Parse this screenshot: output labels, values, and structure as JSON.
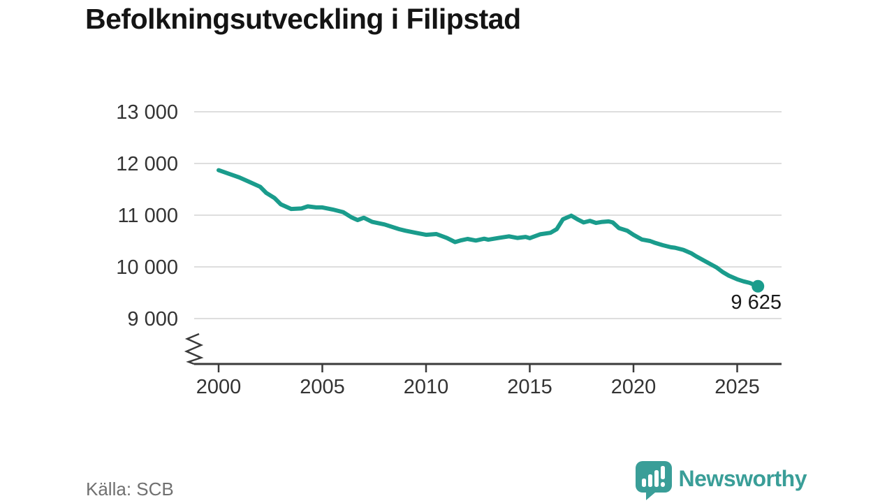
{
  "header": {
    "title": "Befolkningsutveckling i Filipstad"
  },
  "footer": {
    "source": "Källa: SCB",
    "logo_text": "Newsworthy"
  },
  "colors": {
    "line": "#1a9c8c",
    "grid": "#dedede",
    "axis": "#3a3a3a",
    "tick_text": "#333333",
    "title_text": "#141414",
    "source_text": "#707070",
    "logo_teal": "#3a9e98",
    "end_label_text": "#1a1a1a",
    "background": "#ffffff"
  },
  "chart_data": {
    "type": "line",
    "title": "Befolkningsutveckling i Filipstad",
    "xlabel": "",
    "ylabel": "",
    "x_ticks": [
      2000,
      2005,
      2010,
      2015,
      2020,
      2025
    ],
    "x_tick_labels": [
      "2000",
      "2005",
      "2010",
      "2015",
      "2020",
      "2025"
    ],
    "y_ticks": [
      13000,
      12000,
      11000,
      10000,
      9000
    ],
    "y_tick_labels": [
      "13 000",
      "12 000",
      "11 000",
      "10 000",
      "9 000"
    ],
    "xlim": [
      1998.8,
      2027.2
    ],
    "ylim_displayed": [
      9000,
      13000
    ],
    "axis_break": true,
    "grid": "horizontal",
    "legend": "none",
    "end_label": "9 625",
    "end_point": [
      2026,
      9625
    ],
    "points": [
      [
        2000.0,
        11870
      ],
      [
        2000.5,
        11800
      ],
      [
        2001.0,
        11730
      ],
      [
        2001.5,
        11640
      ],
      [
        2002.0,
        11550
      ],
      [
        2002.3,
        11430
      ],
      [
        2002.7,
        11330
      ],
      [
        2003.0,
        11210
      ],
      [
        2003.5,
        11120
      ],
      [
        2004.0,
        11130
      ],
      [
        2004.3,
        11170
      ],
      [
        2004.7,
        11150
      ],
      [
        2005.0,
        11150
      ],
      [
        2005.5,
        11110
      ],
      [
        2006.0,
        11060
      ],
      [
        2006.4,
        10960
      ],
      [
        2006.7,
        10905
      ],
      [
        2007.0,
        10950
      ],
      [
        2007.4,
        10870
      ],
      [
        2008.0,
        10820
      ],
      [
        2008.7,
        10730
      ],
      [
        2009.0,
        10700
      ],
      [
        2009.5,
        10660
      ],
      [
        2010.0,
        10620
      ],
      [
        2010.5,
        10635
      ],
      [
        2011.0,
        10560
      ],
      [
        2011.4,
        10480
      ],
      [
        2011.7,
        10515
      ],
      [
        2012.0,
        10540
      ],
      [
        2012.4,
        10510
      ],
      [
        2012.8,
        10545
      ],
      [
        2013.0,
        10525
      ],
      [
        2013.5,
        10560
      ],
      [
        2014.0,
        10590
      ],
      [
        2014.4,
        10560
      ],
      [
        2014.8,
        10580
      ],
      [
        2015.0,
        10555
      ],
      [
        2015.5,
        10630
      ],
      [
        2016.0,
        10660
      ],
      [
        2016.3,
        10730
      ],
      [
        2016.6,
        10920
      ],
      [
        2017.0,
        10990
      ],
      [
        2017.3,
        10920
      ],
      [
        2017.6,
        10860
      ],
      [
        2017.9,
        10890
      ],
      [
        2018.2,
        10850
      ],
      [
        2018.5,
        10870
      ],
      [
        2018.8,
        10880
      ],
      [
        2019.0,
        10860
      ],
      [
        2019.3,
        10750
      ],
      [
        2019.7,
        10700
      ],
      [
        2020.0,
        10620
      ],
      [
        2020.4,
        10530
      ],
      [
        2020.8,
        10500
      ],
      [
        2021.0,
        10470
      ],
      [
        2021.4,
        10420
      ],
      [
        2021.8,
        10380
      ],
      [
        2022.0,
        10370
      ],
      [
        2022.4,
        10330
      ],
      [
        2022.8,
        10260
      ],
      [
        2023.0,
        10210
      ],
      [
        2023.5,
        10100
      ],
      [
        2024.0,
        9990
      ],
      [
        2024.3,
        9900
      ],
      [
        2024.6,
        9830
      ],
      [
        2025.0,
        9760
      ],
      [
        2025.3,
        9720
      ],
      [
        2025.6,
        9690
      ],
      [
        2026.0,
        9625
      ]
    ]
  }
}
